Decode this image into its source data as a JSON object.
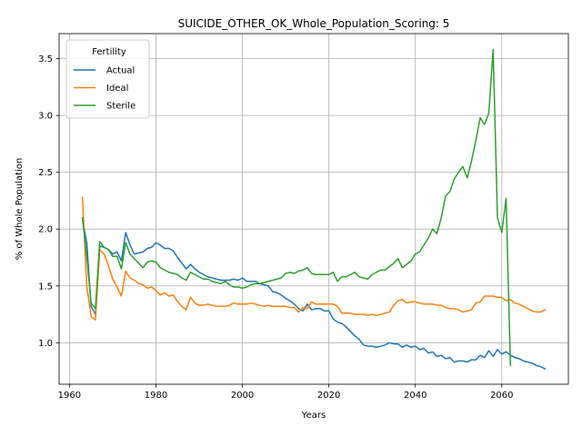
{
  "chart_data": {
    "type": "line",
    "title": "SUICIDE_OTHER_OK_Whole_Population_Scoring: 5",
    "xlabel": "Years",
    "ylabel": "% of Whole Population",
    "xlim": [
      1957.6,
      2075.4
    ],
    "ylim": [
      0.635,
      3.72
    ],
    "xticks": [
      1960,
      1980,
      2000,
      2020,
      2040,
      2060
    ],
    "yticks": [
      1.0,
      1.5,
      2.0,
      2.5,
      3.0,
      3.5
    ],
    "grid": true,
    "legend": {
      "title": "Fertility",
      "placement": "top-left"
    },
    "series": [
      {
        "name": "Actual",
        "color": "#1f77b4",
        "x": [
          1963,
          1964,
          1965,
          1966,
          1967,
          1968,
          1969,
          1970,
          1971,
          1972,
          1973,
          1974,
          1975,
          1976,
          1977,
          1978,
          1979,
          1980,
          1981,
          1982,
          1983,
          1984,
          1985,
          1986,
          1987,
          1988,
          1989,
          1990,
          1991,
          1992,
          1993,
          1994,
          1995,
          1996,
          1997,
          1998,
          1999,
          2000,
          2001,
          2002,
          2003,
          2004,
          2005,
          2006,
          2007,
          2008,
          2009,
          2010,
          2011,
          2012,
          2013,
          2014,
          2015,
          2016,
          2017,
          2018,
          2019,
          2020,
          2021,
          2022,
          2023,
          2024,
          2025,
          2026,
          2027,
          2028,
          2029,
          2030,
          2031,
          2032,
          2033,
          2034,
          2035,
          2036,
          2037,
          2038,
          2039,
          2040,
          2041,
          2042,
          2043,
          2044,
          2045,
          2046,
          2047,
          2048,
          2049,
          2050,
          2051,
          2052,
          2053,
          2054,
          2055,
          2056,
          2057,
          2058,
          2059,
          2060,
          2061,
          2062,
          2063,
          2064,
          2065,
          2066,
          2067,
          2068,
          2069,
          2070
        ],
        "y": [
          2.08,
          1.88,
          1.32,
          1.25,
          1.85,
          1.84,
          1.82,
          1.78,
          1.8,
          1.72,
          1.97,
          1.86,
          1.78,
          1.79,
          1.8,
          1.83,
          1.84,
          1.88,
          1.86,
          1.83,
          1.83,
          1.81,
          1.75,
          1.7,
          1.65,
          1.69,
          1.65,
          1.62,
          1.6,
          1.58,
          1.57,
          1.56,
          1.55,
          1.55,
          1.55,
          1.56,
          1.55,
          1.57,
          1.54,
          1.54,
          1.54,
          1.52,
          1.51,
          1.5,
          1.45,
          1.44,
          1.42,
          1.39,
          1.37,
          1.34,
          1.3,
          1.28,
          1.34,
          1.29,
          1.3,
          1.3,
          1.28,
          1.28,
          1.21,
          1.18,
          1.17,
          1.14,
          1.1,
          1.06,
          1.03,
          0.98,
          0.97,
          0.97,
          0.96,
          0.97,
          0.98,
          1.0,
          0.99,
          0.99,
          0.96,
          0.98,
          0.96,
          0.97,
          0.94,
          0.95,
          0.91,
          0.92,
          0.88,
          0.89,
          0.86,
          0.87,
          0.83,
          0.84,
          0.84,
          0.83,
          0.85,
          0.85,
          0.89,
          0.87,
          0.93,
          0.88,
          0.94,
          0.9,
          0.92,
          0.89,
          0.87,
          0.86,
          0.84,
          0.83,
          0.82,
          0.8,
          0.79,
          0.77
        ]
      },
      {
        "name": "Ideal",
        "color": "#ff7f0e",
        "x": [
          1963,
          1964,
          1965,
          1966,
          1967,
          1968,
          1969,
          1970,
          1971,
          1972,
          1973,
          1974,
          1975,
          1976,
          1977,
          1978,
          1979,
          1980,
          1981,
          1982,
          1983,
          1984,
          1985,
          1986,
          1987,
          1988,
          1989,
          1990,
          1991,
          1992,
          1993,
          1994,
          1995,
          1996,
          1997,
          1998,
          1999,
          2000,
          2001,
          2002,
          2003,
          2004,
          2005,
          2006,
          2007,
          2008,
          2009,
          2010,
          2011,
          2012,
          2013,
          2014,
          2015,
          2016,
          2017,
          2018,
          2019,
          2020,
          2021,
          2022,
          2023,
          2024,
          2025,
          2026,
          2027,
          2028,
          2029,
          2030,
          2031,
          2032,
          2033,
          2034,
          2035,
          2036,
          2037,
          2038,
          2039,
          2040,
          2041,
          2042,
          2043,
          2044,
          2045,
          2046,
          2047,
          2048,
          2049,
          2050,
          2051,
          2052,
          2053,
          2054,
          2055,
          2056,
          2057,
          2058,
          2059,
          2060,
          2061,
          2062,
          2063,
          2064,
          2065,
          2066,
          2067,
          2068,
          2069,
          2070
        ],
        "y": [
          2.28,
          1.5,
          1.23,
          1.2,
          1.82,
          1.78,
          1.68,
          1.56,
          1.49,
          1.41,
          1.63,
          1.57,
          1.55,
          1.52,
          1.51,
          1.48,
          1.49,
          1.46,
          1.42,
          1.44,
          1.41,
          1.42,
          1.36,
          1.32,
          1.29,
          1.4,
          1.35,
          1.33,
          1.33,
          1.34,
          1.33,
          1.32,
          1.32,
          1.32,
          1.33,
          1.35,
          1.34,
          1.34,
          1.34,
          1.35,
          1.34,
          1.33,
          1.32,
          1.33,
          1.32,
          1.32,
          1.32,
          1.32,
          1.31,
          1.31,
          1.27,
          1.31,
          1.3,
          1.36,
          1.34,
          1.34,
          1.34,
          1.34,
          1.34,
          1.32,
          1.26,
          1.26,
          1.26,
          1.25,
          1.25,
          1.25,
          1.24,
          1.25,
          1.24,
          1.25,
          1.26,
          1.27,
          1.33,
          1.37,
          1.38,
          1.35,
          1.36,
          1.36,
          1.35,
          1.34,
          1.34,
          1.34,
          1.33,
          1.33,
          1.31,
          1.3,
          1.3,
          1.29,
          1.27,
          1.28,
          1.29,
          1.35,
          1.36,
          1.41,
          1.41,
          1.41,
          1.4,
          1.4,
          1.37,
          1.38,
          1.35,
          1.34,
          1.32,
          1.3,
          1.28,
          1.27,
          1.27,
          1.29
        ]
      },
      {
        "name": "Sterile",
        "color": "#2ca02c",
        "x": [
          1963,
          1964,
          1965,
          1966,
          1967,
          1968,
          1969,
          1970,
          1971,
          1972,
          1973,
          1974,
          1975,
          1976,
          1977,
          1978,
          1979,
          1980,
          1981,
          1982,
          1983,
          1984,
          1985,
          1986,
          1987,
          1988,
          1989,
          1990,
          1991,
          1992,
          1993,
          1994,
          1995,
          1996,
          1997,
          1998,
          1999,
          2000,
          2001,
          2002,
          2003,
          2004,
          2005,
          2006,
          2007,
          2008,
          2009,
          2010,
          2011,
          2012,
          2013,
          2014,
          2015,
          2016,
          2017,
          2018,
          2019,
          2020,
          2021,
          2022,
          2023,
          2024,
          2025,
          2026,
          2027,
          2028,
          2029,
          2030,
          2031,
          2032,
          2033,
          2034,
          2035,
          2036,
          2037,
          2038,
          2039,
          2040,
          2041,
          2042,
          2043,
          2044,
          2045,
          2046,
          2047,
          2048,
          2049,
          2050,
          2051,
          2052,
          2053,
          2054,
          2055,
          2056,
          2057,
          2058,
          2059,
          2060,
          2061,
          2062
        ],
        "y": [
          2.1,
          1.76,
          1.35,
          1.3,
          1.89,
          1.84,
          1.82,
          1.76,
          1.76,
          1.65,
          1.88,
          1.78,
          1.74,
          1.7,
          1.66,
          1.71,
          1.72,
          1.71,
          1.66,
          1.64,
          1.62,
          1.61,
          1.6,
          1.57,
          1.55,
          1.62,
          1.6,
          1.58,
          1.56,
          1.56,
          1.54,
          1.53,
          1.52,
          1.54,
          1.51,
          1.49,
          1.49,
          1.48,
          1.49,
          1.51,
          1.52,
          1.52,
          1.53,
          1.54,
          1.55,
          1.56,
          1.57,
          1.61,
          1.62,
          1.61,
          1.63,
          1.64,
          1.66,
          1.61,
          1.6,
          1.6,
          1.6,
          1.6,
          1.62,
          1.54,
          1.58,
          1.58,
          1.6,
          1.62,
          1.58,
          1.57,
          1.56,
          1.6,
          1.62,
          1.64,
          1.64,
          1.67,
          1.7,
          1.74,
          1.66,
          1.69,
          1.72,
          1.78,
          1.8,
          1.86,
          1.92,
          2.0,
          1.96,
          2.1,
          2.29,
          2.33,
          2.44,
          2.5,
          2.55,
          2.45,
          2.6,
          2.78,
          2.98,
          2.92,
          3.02,
          3.58,
          2.1,
          1.97,
          2.27,
          0.8
        ]
      }
    ]
  }
}
